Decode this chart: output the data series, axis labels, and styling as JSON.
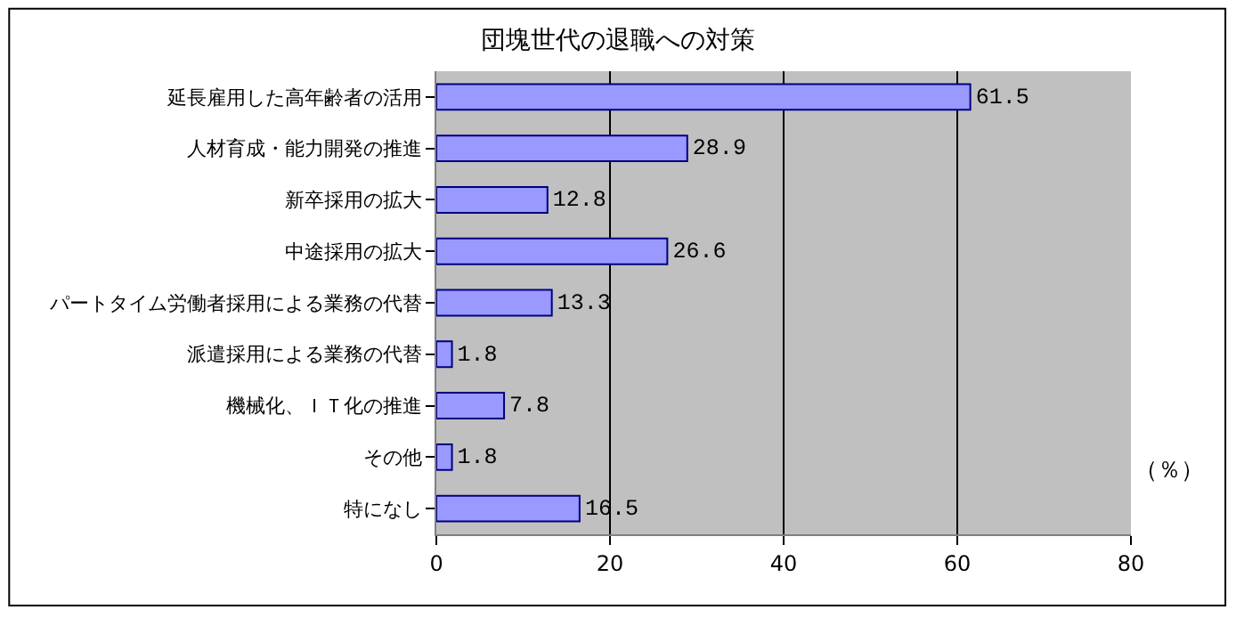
{
  "chart_data": {
    "type": "bar",
    "orientation": "horizontal",
    "title": "団塊世代の退職への対策",
    "categories": [
      "延長雇用した高年齢者の活用",
      "人材育成・能力開発の推進",
      "新卒採用の拡大",
      "中途採用の拡大",
      "パートタイム労働者採用による業務の代替",
      "派遣採用による業務の代替",
      "機械化、ＩＴ化の推進",
      "その他",
      "特になし"
    ],
    "series": [
      {
        "color": "#9999ff",
        "values": [
          61.5,
          28.9,
          12.8,
          26.6,
          13.3,
          1.8,
          7.8,
          1.8,
          16.5
        ]
      }
    ],
    "xlim": [
      0,
      80
    ],
    "xticks": [
      0,
      20,
      40,
      60,
      80
    ],
    "grid": "x",
    "data_labels": true,
    "annotations": [
      "（％）"
    ]
  }
}
